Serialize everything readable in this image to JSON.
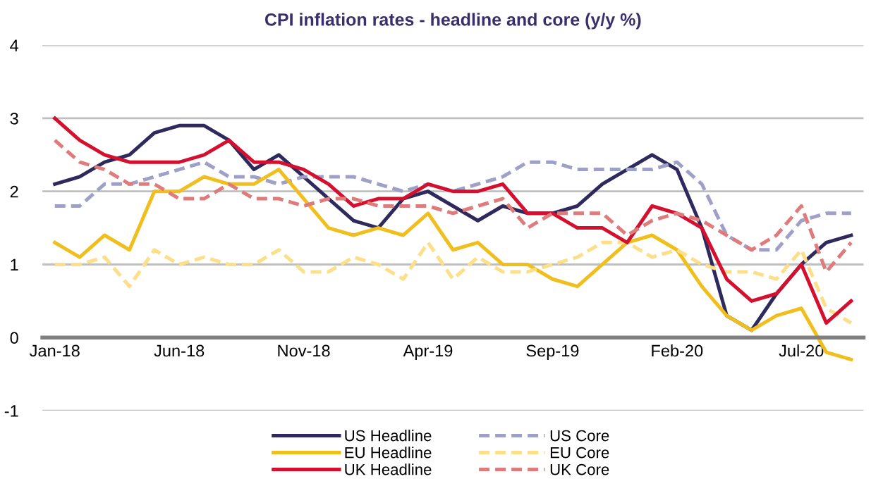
{
  "chart_data": {
    "type": "line",
    "title": "CPI inflation rates - headline and core (y/y %)",
    "categories": [
      "Jan-18",
      null,
      null,
      null,
      null,
      "Jun-18",
      null,
      null,
      null,
      null,
      "Nov-18",
      null,
      null,
      null,
      null,
      "Apr-19",
      null,
      null,
      null,
      null,
      "Sep-19",
      null,
      null,
      null,
      null,
      "Feb-20",
      null,
      null,
      null,
      null,
      "Jul-20",
      null,
      null
    ],
    "ylim": [
      -1,
      4
    ],
    "yticks": [
      -1,
      0,
      1,
      2,
      3,
      4
    ],
    "grid": "y",
    "legend": "bottom",
    "marker": "none",
    "series": [
      {
        "name": "US Headline",
        "color": "#2e2a5e",
        "line_style": "solid",
        "values": [
          2.1,
          2.2,
          2.4,
          2.5,
          2.8,
          2.9,
          2.9,
          2.7,
          2.3,
          2.5,
          2.2,
          1.9,
          1.6,
          1.5,
          1.9,
          2.0,
          1.8,
          1.6,
          1.8,
          1.7,
          1.7,
          1.8,
          2.1,
          2.3,
          2.5,
          2.3,
          1.5,
          0.3,
          0.1,
          0.6,
          1.0,
          1.3,
          1.4
        ]
      },
      {
        "name": "US Core",
        "color": "#9fa0c8",
        "line_style": "dashed",
        "values": [
          1.8,
          1.8,
          2.1,
          2.1,
          2.2,
          2.3,
          2.4,
          2.2,
          2.2,
          2.1,
          2.2,
          2.2,
          2.2,
          2.1,
          2.0,
          2.1,
          2.0,
          2.1,
          2.2,
          2.4,
          2.4,
          2.3,
          2.3,
          2.3,
          2.3,
          2.4,
          2.1,
          1.4,
          1.2,
          1.2,
          1.6,
          1.7,
          1.7
        ]
      },
      {
        "name": "EU Headline",
        "color": "#f0bf1e",
        "line_style": "solid",
        "values": [
          1.3,
          1.1,
          1.4,
          1.2,
          2.0,
          2.0,
          2.2,
          2.1,
          2.1,
          2.3,
          1.9,
          1.5,
          1.4,
          1.5,
          1.4,
          1.7,
          1.2,
          1.3,
          1.0,
          1.0,
          0.8,
          0.7,
          1.0,
          1.3,
          1.4,
          1.2,
          0.7,
          0.3,
          0.1,
          0.3,
          0.4,
          -0.2,
          -0.3
        ]
      },
      {
        "name": "EU Core",
        "color": "#fddf8a",
        "line_style": "dashed",
        "values": [
          1.0,
          1.0,
          1.1,
          0.7,
          1.2,
          1.0,
          1.1,
          1.0,
          1.0,
          1.2,
          0.9,
          0.9,
          1.1,
          1.0,
          0.8,
          1.3,
          0.8,
          1.1,
          0.9,
          0.9,
          1.0,
          1.1,
          1.3,
          1.3,
          1.1,
          1.2,
          1.0,
          0.9,
          0.9,
          0.8,
          1.2,
          0.4,
          0.2
        ]
      },
      {
        "name": "UK Headline",
        "color": "#d4102e",
        "line_style": "solid",
        "values": [
          3.0,
          2.7,
          2.5,
          2.4,
          2.4,
          2.4,
          2.5,
          2.7,
          2.4,
          2.4,
          2.3,
          2.1,
          1.8,
          1.9,
          1.9,
          2.1,
          2.0,
          2.0,
          2.1,
          1.7,
          1.7,
          1.5,
          1.5,
          1.3,
          1.8,
          1.7,
          1.5,
          0.8,
          0.5,
          0.6,
          1.0,
          0.2,
          0.5
        ]
      },
      {
        "name": "UK Core",
        "color": "#e07b7b",
        "line_style": "dashed",
        "values": [
          2.7,
          2.4,
          2.3,
          2.1,
          2.1,
          1.9,
          1.9,
          2.1,
          1.9,
          1.9,
          1.8,
          1.9,
          1.9,
          1.8,
          1.8,
          1.8,
          1.7,
          1.8,
          1.9,
          1.5,
          1.7,
          1.7,
          1.7,
          1.4,
          1.6,
          1.7,
          1.6,
          1.4,
          1.2,
          1.4,
          1.8,
          0.9,
          1.3
        ]
      }
    ]
  }
}
